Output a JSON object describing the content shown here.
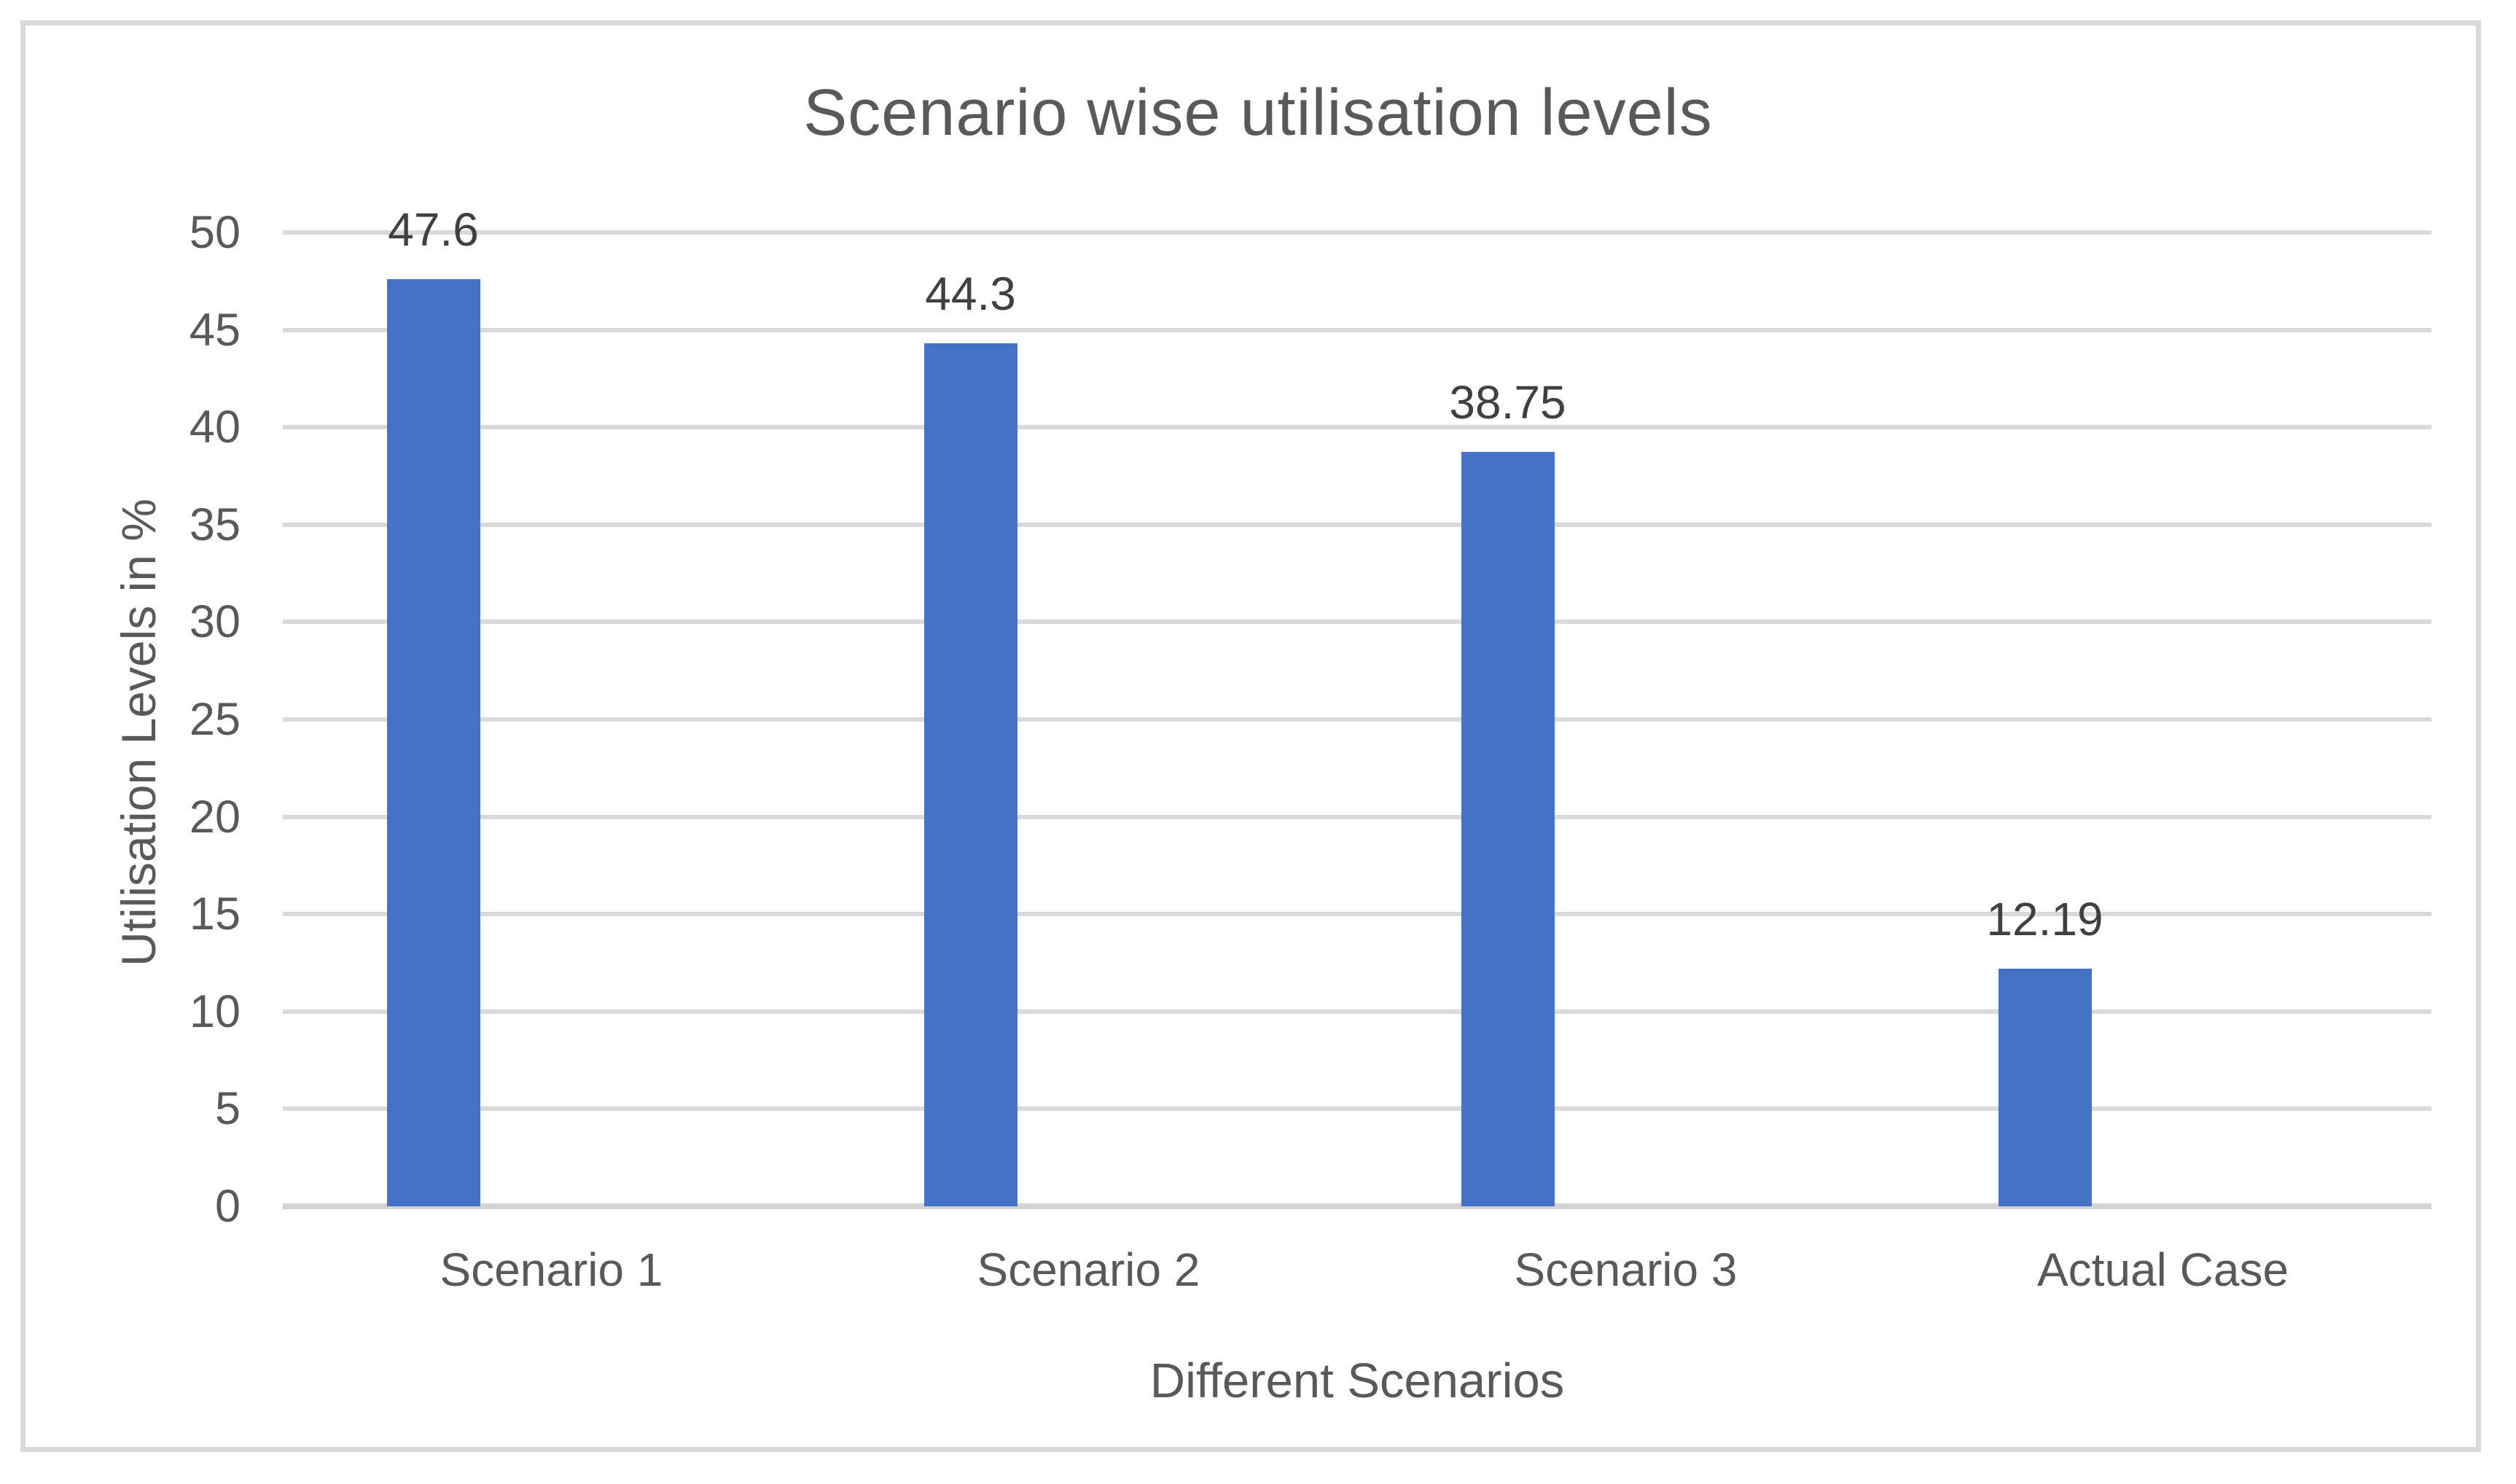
{
  "chart_data": {
    "type": "bar",
    "title": "Scenario wise utilisation levels",
    "xlabel": "Different Scenarios",
    "ylabel": "Utilisation Levels in %",
    "categories": [
      "Scenario 1",
      "Scenario 2",
      "Scenario 3",
      "Actual Case"
    ],
    "values": [
      47.6,
      44.3,
      38.75,
      12.19
    ],
    "data_labels": [
      "47.6",
      "44.3",
      "38.75",
      "12.19"
    ],
    "ylim": [
      0,
      50
    ],
    "yticks": [
      0,
      5,
      10,
      15,
      20,
      25,
      30,
      35,
      40,
      45,
      50
    ],
    "ytick_labels": [
      "0",
      "5",
      "10",
      "15",
      "20",
      "25",
      "30",
      "35",
      "40",
      "45",
      "50"
    ],
    "grid": "horizontal",
    "legend": "none",
    "colors": {
      "bar": "#4472C4",
      "gridline": "#D9D9D9",
      "axis_line": "#D3D3D3",
      "title_text": "#595959",
      "axis_text": "#595959",
      "data_label_text": "#404040",
      "frame_border": "#D9D9D9",
      "background": "#FFFFFF"
    }
  }
}
